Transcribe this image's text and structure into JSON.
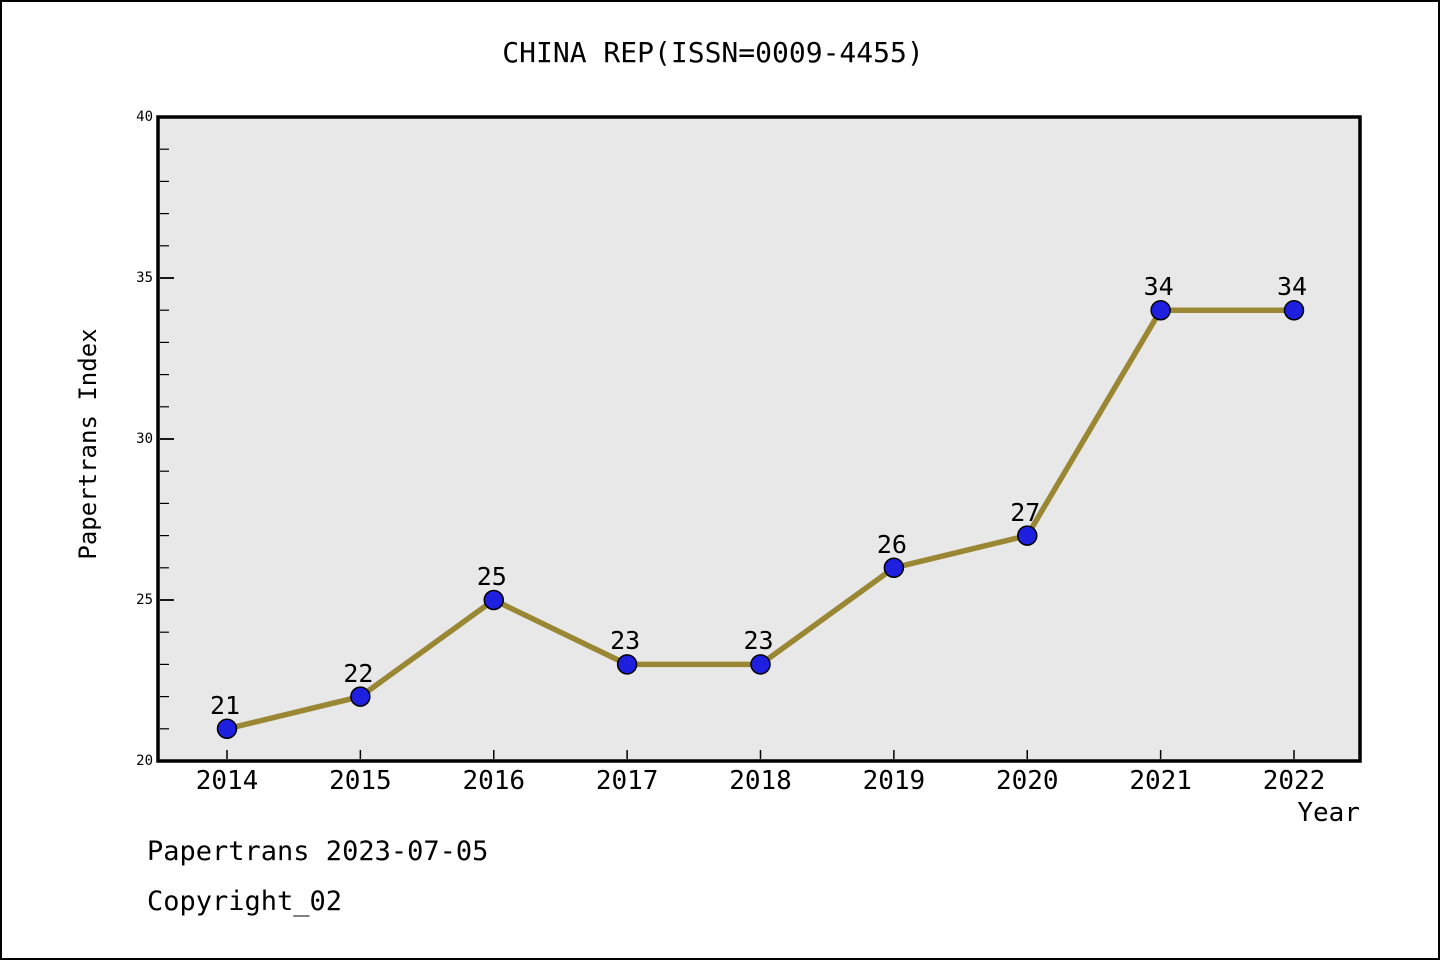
{
  "title": "CHINA REP(ISSN=0009-4455)",
  "footer": {
    "line1": "Papertrans 2023-07-05",
    "line2": "Copyright_02"
  },
  "chart_data": {
    "type": "line",
    "title": "CHINA REP(ISSN=0009-4455)",
    "xlabel": "Year",
    "ylabel": "Papertrans Index",
    "x": [
      2014,
      2015,
      2016,
      2017,
      2018,
      2019,
      2020,
      2021,
      2022
    ],
    "values": [
      21,
      22,
      25,
      23,
      23,
      26,
      27,
      34,
      34
    ],
    "point_labels": [
      "21",
      "22",
      "25",
      "23",
      "23",
      "26",
      "27",
      "34",
      "34"
    ],
    "ylim": [
      20,
      40
    ],
    "y_major_ticks": [
      20,
      25,
      30,
      35,
      40
    ],
    "y_minor_step": 1,
    "grid": false,
    "legend": false,
    "colors": {
      "line": "#9a8733",
      "marker_fill": "#1f1fe0",
      "marker_edge": "#000000",
      "plot_background": "#e8e8e8",
      "figure_background": "#ffffff",
      "axis": "#000000",
      "text": "#000000"
    }
  }
}
